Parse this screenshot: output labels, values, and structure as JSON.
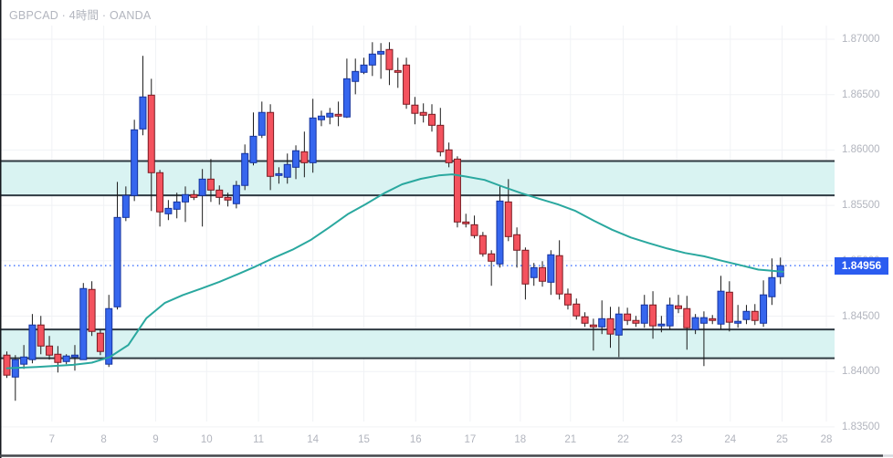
{
  "header": {
    "title": "GBPCAD · 4時間 · OANDA"
  },
  "colors": {
    "up_fill": "#3666ee",
    "up_border": "#16339e",
    "down_fill": "#f4525e",
    "down_border": "#7a1b22",
    "wick": "#1a1a1a",
    "zone_fill": "#d9f3f2",
    "zone_border": "#2f3a42",
    "ma_line": "#2aa89f",
    "price_line": "#2962ff",
    "grid": "#f0f2f5",
    "axis_text": "#b2b5be",
    "badge_bg": "#2b5cf0"
  },
  "price_axis": {
    "current_price_label": "1.84956",
    "ticks": [
      {
        "label": "1.87000",
        "p": 1.87
      },
      {
        "label": "1.86500",
        "p": 1.865
      },
      {
        "label": "1.86000",
        "p": 1.86
      },
      {
        "label": "1.85500",
        "p": 1.855
      },
      {
        "label": "1.85000",
        "p": 1.85
      },
      {
        "label": "1.84500",
        "p": 1.845
      },
      {
        "label": "1.84000",
        "p": 1.84
      },
      {
        "label": "1.83500",
        "p": 1.835
      }
    ]
  },
  "time_axis": {
    "labels": [
      {
        "text": "7",
        "i": 5.3
      },
      {
        "text": "8",
        "i": 11.4
      },
      {
        "text": "9",
        "i": 17.5
      },
      {
        "text": "10",
        "i": 23.5
      },
      {
        "text": "11",
        "i": 29.6
      },
      {
        "text": "14",
        "i": 36.0
      },
      {
        "text": "15",
        "i": 42.0
      },
      {
        "text": "16",
        "i": 48.1
      },
      {
        "text": "17",
        "i": 54.5
      },
      {
        "text": "18",
        "i": 60.4
      },
      {
        "text": "21",
        "i": 66.3
      },
      {
        "text": "22",
        "i": 72.5
      },
      {
        "text": "23",
        "i": 78.8
      },
      {
        "text": "24",
        "i": 85.1
      },
      {
        "text": "25",
        "i": 91.2
      },
      {
        "text": "28",
        "i": 96.4
      }
    ]
  },
  "chart_data": {
    "type": "candlestick",
    "title": "GBPCAD · 4時間 · OANDA",
    "symbol": "GBPCAD",
    "interval": "4時間",
    "exchange": "OANDA",
    "current_price": 1.84956,
    "ylim": [
      1.8355,
      1.8735
    ],
    "grid": true,
    "zones": [
      {
        "name": "upper-supply-zone",
        "top": 1.859,
        "bottom": 1.8559
      },
      {
        "name": "lower-demand-zone",
        "top": 1.8438,
        "bottom": 1.8412
      }
    ],
    "ma_points": [
      [
        0,
        1.8403
      ],
      [
        3.5,
        1.8404
      ],
      [
        7.8,
        1.8406
      ],
      [
        10,
        1.8408
      ],
      [
        12.1,
        1.8413
      ],
      [
        14.3,
        1.8424
      ],
      [
        16.4,
        1.8448
      ],
      [
        18.6,
        1.8462
      ],
      [
        20.7,
        1.8469
      ],
      [
        22.9,
        1.8475
      ],
      [
        25,
        1.8481
      ],
      [
        27.2,
        1.8488
      ],
      [
        29.3,
        1.8495
      ],
      [
        31.5,
        1.8503
      ],
      [
        33.6,
        1.851
      ],
      [
        35.8,
        1.8519
      ],
      [
        37.9,
        1.853
      ],
      [
        40.1,
        1.8542
      ],
      [
        42.2,
        1.8551
      ],
      [
        44.4,
        1.8561
      ],
      [
        46.5,
        1.8569
      ],
      [
        48.7,
        1.8574
      ],
      [
        50.8,
        1.8577
      ],
      [
        52.4,
        1.8578
      ],
      [
        54,
        1.8576
      ],
      [
        56.2,
        1.8573
      ],
      [
        58.3,
        1.8567
      ],
      [
        60.5,
        1.8561
      ],
      [
        62.6,
        1.8556
      ],
      [
        64.8,
        1.8551
      ],
      [
        66.9,
        1.8545
      ],
      [
        69.1,
        1.8536
      ],
      [
        71.2,
        1.8528
      ],
      [
        73.4,
        1.8521
      ],
      [
        75.5,
        1.8516
      ],
      [
        77.7,
        1.8511
      ],
      [
        79.8,
        1.8507
      ],
      [
        82,
        1.8504
      ],
      [
        84.1,
        1.85
      ],
      [
        86.3,
        1.8496
      ],
      [
        88.4,
        1.8492
      ],
      [
        90,
        1.8491
      ],
      [
        91.3,
        1.849
      ]
    ],
    "candles_ohlc": [
      [
        1.84148,
        1.84181,
        1.83942,
        1.83967
      ],
      [
        1.8395,
        1.84148,
        1.83736,
        1.84107
      ],
      [
        1.84066,
        1.84239,
        1.84024,
        1.84131
      ],
      [
        1.84107,
        1.84519,
        1.84074,
        1.8442
      ],
      [
        1.8442,
        1.84502,
        1.84156,
        1.8423
      ],
      [
        1.8423,
        1.84321,
        1.84107,
        1.84148
      ],
      [
        1.84156,
        1.8423,
        1.83991,
        1.84082
      ],
      [
        1.8409,
        1.84156,
        1.84066,
        1.8414
      ],
      [
        1.84131,
        1.84239,
        1.84008,
        1.84148
      ],
      [
        1.84107,
        1.84799,
        1.84107,
        1.84749
      ],
      [
        1.84741,
        1.84815,
        1.84321,
        1.84362
      ],
      [
        1.84346,
        1.84379,
        1.84148,
        1.84181
      ],
      [
        1.84066,
        1.84692,
        1.84041,
        1.84568
      ],
      [
        1.84584,
        1.85712,
        1.8456,
        1.85391
      ],
      [
        1.85391,
        1.85671,
        1.85358,
        1.85589
      ],
      [
        1.85589,
        1.86273,
        1.85539,
        1.86182
      ],
      [
        1.8619,
        1.8685,
        1.86133,
        1.86479
      ],
      [
        1.86495,
        1.86643,
        1.85449,
        1.85795
      ],
      [
        1.85795,
        1.8582,
        1.85309,
        1.85441
      ],
      [
        1.85424,
        1.85548,
        1.85367,
        1.85473
      ],
      [
        1.85465,
        1.85614,
        1.85383,
        1.85531
      ],
      [
        1.85531,
        1.85671,
        1.8535,
        1.85597
      ],
      [
        1.85597,
        1.85638,
        1.85548,
        1.85572
      ],
      [
        1.85589,
        1.85828,
        1.85309,
        1.85737
      ],
      [
        1.85737,
        1.85918,
        1.85531,
        1.85638
      ],
      [
        1.85638,
        1.8568,
        1.85506,
        1.85572
      ],
      [
        1.85572,
        1.85614,
        1.8549,
        1.85548
      ],
      [
        1.85515,
        1.85721,
        1.85473,
        1.8568
      ],
      [
        1.8568,
        1.8605,
        1.85638,
        1.85968
      ],
      [
        1.85885,
        1.86339,
        1.85861,
        1.86124
      ],
      [
        1.86133,
        1.86437,
        1.86108,
        1.86339
      ],
      [
        1.86339,
        1.86413,
        1.85638,
        1.85762
      ],
      [
        1.8577,
        1.85844,
        1.85696,
        1.85786
      ],
      [
        1.85754,
        1.85968,
        1.85696,
        1.85869
      ],
      [
        1.85844,
        1.86042,
        1.85737,
        1.85993
      ],
      [
        1.85984,
        1.86166,
        1.85754,
        1.85885
      ],
      [
        1.85885,
        1.86462,
        1.85795,
        1.86289
      ],
      [
        1.86273,
        1.86355,
        1.86215,
        1.86306
      ],
      [
        1.86298,
        1.8638,
        1.86232,
        1.86331
      ],
      [
        1.86322,
        1.86437,
        1.86215,
        1.86306
      ],
      [
        1.86298,
        1.86825,
        1.86289,
        1.86643
      ],
      [
        1.86619,
        1.86825,
        1.86503,
        1.86709
      ],
      [
        1.86701,
        1.86833,
        1.86685,
        1.86767
      ],
      [
        1.86767,
        1.86973,
        1.86668,
        1.86866
      ],
      [
        1.86866,
        1.86965,
        1.86643,
        1.8689
      ],
      [
        1.86907,
        1.86973,
        1.86586,
        1.86726
      ],
      [
        1.86717,
        1.86833,
        1.86561,
        1.86701
      ],
      [
        1.86767,
        1.86833,
        1.86372,
        1.86413
      ],
      [
        1.86405,
        1.86479,
        1.86232,
        1.86331
      ],
      [
        1.86339,
        1.86421,
        1.86248,
        1.86314
      ],
      [
        1.86322,
        1.86413,
        1.86166,
        1.86223
      ],
      [
        1.86223,
        1.8638,
        1.85943,
        1.85984
      ],
      [
        1.86001,
        1.86067,
        1.85844,
        1.85885
      ],
      [
        1.85918,
        1.85943,
        1.85301,
        1.8535
      ],
      [
        1.8535,
        1.85424,
        1.85301,
        1.85334
      ],
      [
        1.85325,
        1.85408,
        1.85202,
        1.85227
      ],
      [
        1.85227,
        1.8526,
        1.85037,
        1.85062
      ],
      [
        1.85062,
        1.85095,
        1.84774,
        1.84996
      ],
      [
        1.84971,
        1.85671,
        1.84938,
        1.85539
      ],
      [
        1.85531,
        1.85737,
        1.85177,
        1.85218
      ],
      [
        1.85235,
        1.85301,
        1.84938,
        1.85095
      ],
      [
        1.85095,
        1.8512,
        1.8465,
        1.8479
      ],
      [
        1.84848,
        1.8498,
        1.84774,
        1.84938
      ],
      [
        1.84938,
        1.84996,
        1.84766,
        1.84815
      ],
      [
        1.84806,
        1.85095,
        1.84692,
        1.85054
      ],
      [
        1.85046,
        1.85185,
        1.8465,
        1.847
      ],
      [
        1.847,
        1.84749,
        1.8456,
        1.84601
      ],
      [
        1.84609,
        1.84659,
        1.84469,
        1.84502
      ],
      [
        1.84494,
        1.84535,
        1.84403,
        1.84436
      ],
      [
        1.8442,
        1.84477,
        1.84189,
        1.84403
      ],
      [
        1.84403,
        1.84642,
        1.84338,
        1.84477
      ],
      [
        1.84477,
        1.84584,
        1.84214,
        1.84338
      ],
      [
        1.84329,
        1.84584,
        1.84131,
        1.84519
      ],
      [
        1.84519,
        1.84576,
        1.8442,
        1.84461
      ],
      [
        1.84461,
        1.84502,
        1.84403,
        1.84436
      ],
      [
        1.84436,
        1.84692,
        1.84395,
        1.84601
      ],
      [
        1.84601,
        1.84725,
        1.84296,
        1.84412
      ],
      [
        1.84412,
        1.84502,
        1.84354,
        1.84428
      ],
      [
        1.84412,
        1.84667,
        1.84379,
        1.84601
      ],
      [
        1.84593,
        1.84692,
        1.84527,
        1.84568
      ],
      [
        1.84568,
        1.84683,
        1.84197,
        1.84395
      ],
      [
        1.84379,
        1.84519,
        1.84338,
        1.84486
      ],
      [
        1.84436,
        1.84543,
        1.84049,
        1.84486
      ],
      [
        1.84477,
        1.8451,
        1.84428,
        1.84461
      ],
      [
        1.84428,
        1.84864,
        1.84379,
        1.84725
      ],
      [
        1.84716,
        1.84815,
        1.84362,
        1.84445
      ],
      [
        1.84436,
        1.84601,
        1.84395,
        1.84453
      ],
      [
        1.84469,
        1.84601,
        1.84428,
        1.84543
      ],
      [
        1.84543,
        1.84609,
        1.8442,
        1.84461
      ],
      [
        1.84436,
        1.84823,
        1.84403,
        1.84692
      ],
      [
        1.84675,
        1.85021,
        1.84601,
        1.84848
      ],
      [
        1.84856,
        1.85029,
        1.8479,
        1.84956
      ]
    ]
  }
}
